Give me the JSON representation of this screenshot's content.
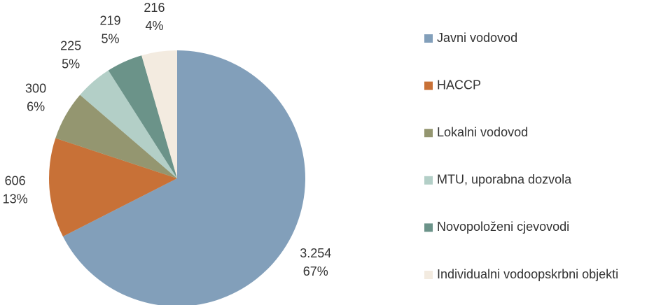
{
  "chart_data": {
    "type": "pie",
    "categories": [
      "Javni vodovod",
      "HACCP",
      "Lokalni vodovod",
      "MTU, uporabna dozvola",
      "Novopoloženi cjevovodi",
      "Individualni vodoopskrbni objekti"
    ],
    "values": [
      3254,
      606,
      300,
      225,
      219,
      216
    ],
    "value_labels": [
      "3.254",
      "606",
      "300",
      "225",
      "219",
      "216"
    ],
    "percent_labels": [
      "67%",
      "13%",
      "6%",
      "5%",
      "5%",
      "4%"
    ],
    "colors": [
      "#829fba",
      "#c87137",
      "#949670",
      "#b3cfc7",
      "#6b9389",
      "#f3ebe0"
    ],
    "legend": "right"
  }
}
